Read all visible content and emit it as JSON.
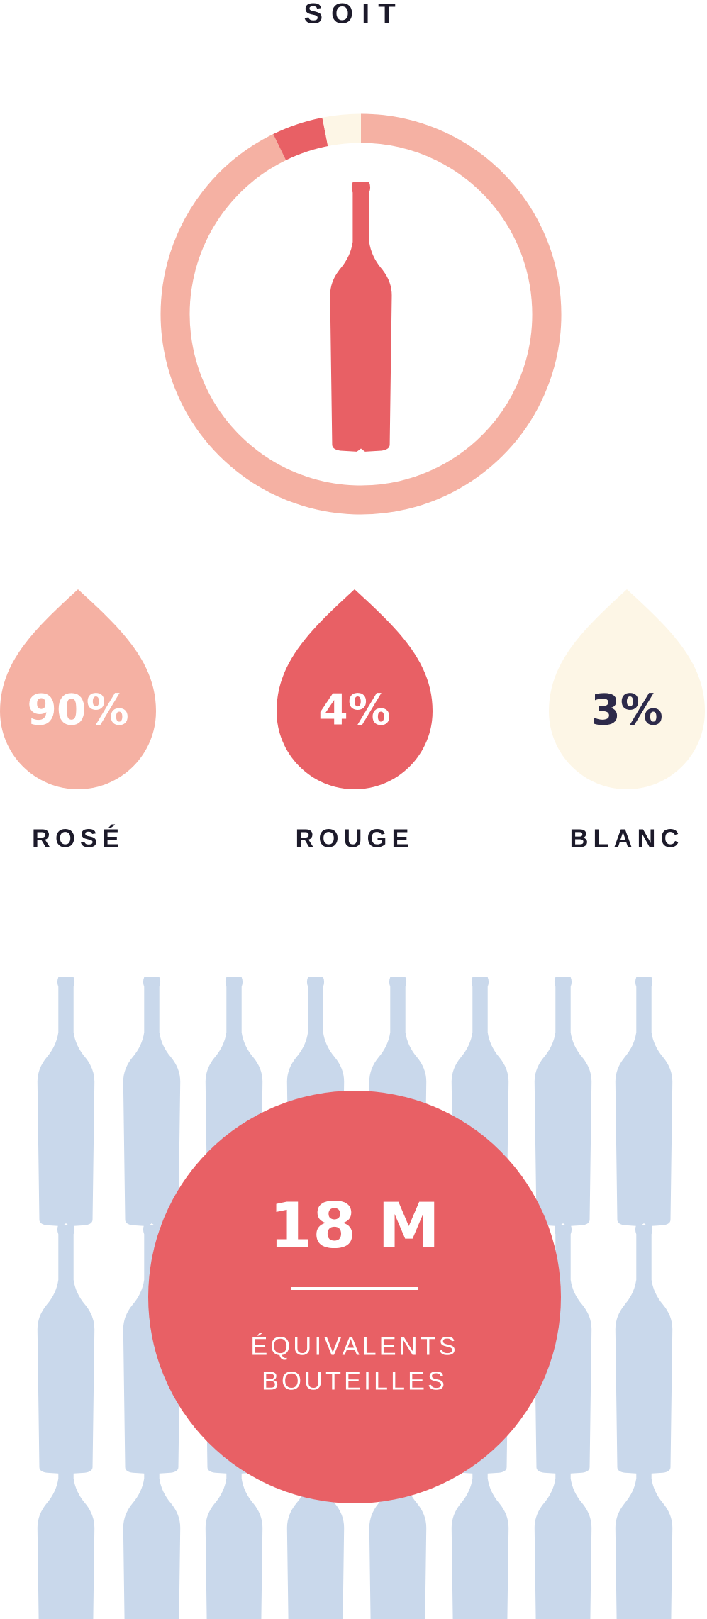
{
  "chart_data": {
    "type": "donut",
    "title": "SOIT",
    "categories": [
      "ROSÉ",
      "ROUGE",
      "BLANC"
    ],
    "values": [
      90,
      4,
      3
    ],
    "value_labels": [
      "90%",
      "4%",
      "3%"
    ],
    "colors": [
      "#f5b1a3",
      "#e86065",
      "#fdf6e6"
    ]
  },
  "callout": {
    "value": "18 M",
    "caption": [
      "ÉQUIVALENTS",
      "BOUTEILLES"
    ]
  }
}
